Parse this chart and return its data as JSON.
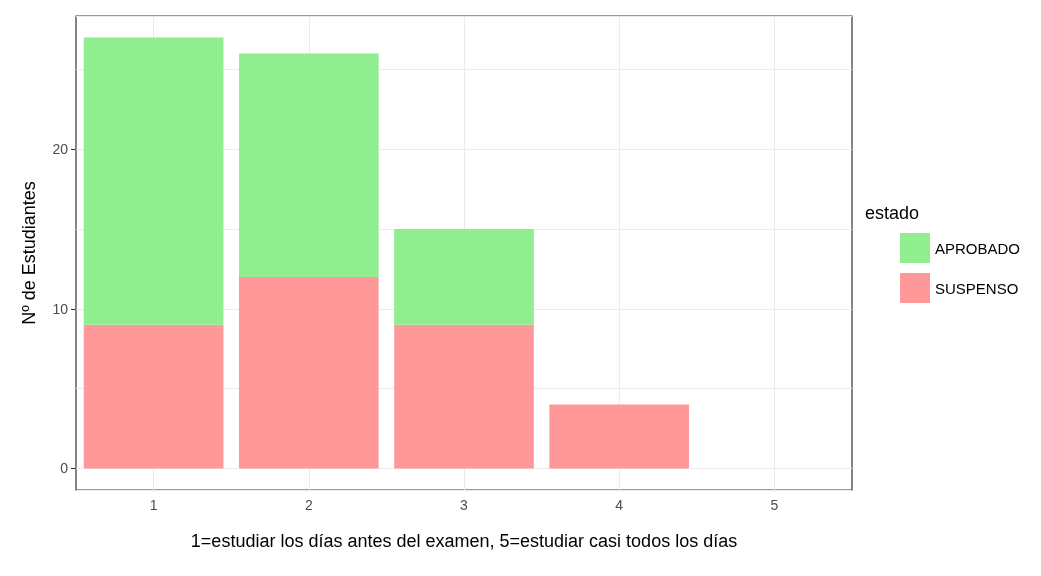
{
  "chart_data": {
    "type": "bar",
    "stacked": true,
    "xlabel": "1=estudiar los días antes del examen, 5=estudiar casi todos los días",
    "ylabel": "Nº de Estudiantes",
    "legend_title": "estado",
    "categories": [
      "1",
      "2",
      "3",
      "4",
      "5"
    ],
    "series": [
      {
        "name": "SUSPENSO",
        "color": "#ff9999",
        "values": [
          9,
          12,
          9,
          4,
          0
        ]
      },
      {
        "name": "APROBADO",
        "color": "#90ee90",
        "values": [
          18,
          14,
          6,
          0,
          0
        ]
      }
    ],
    "ylim": [
      -1.35,
      28.35
    ],
    "yticks": [
      0,
      {
        "value": 5,
        "label": null
      },
      10,
      {
        "value": 15,
        "label": null
      },
      20,
      {
        "value": 25,
        "label": null
      }
    ],
    "grid": true,
    "legend": "right"
  }
}
